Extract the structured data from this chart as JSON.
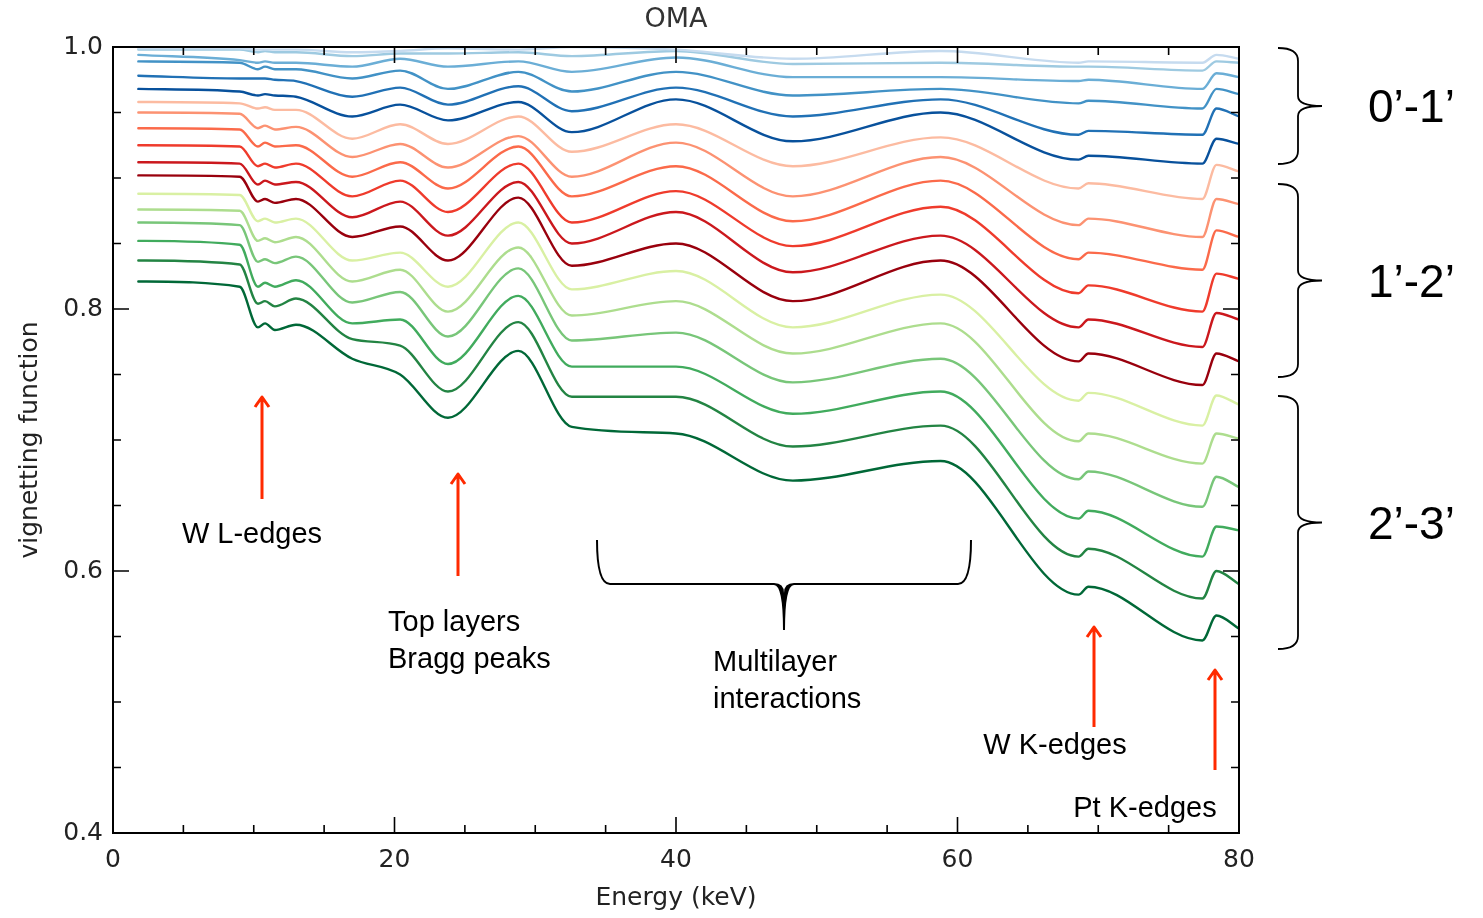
{
  "chart_data": {
    "type": "line",
    "title": "OMA",
    "xlabel": "Energy (keV)",
    "ylabel": "vignetting function",
    "x": [
      1.8,
      9.0,
      10.3,
      10.8,
      11.5,
      13,
      17,
      20.4,
      23.8,
      28.8,
      32.6,
      40,
      48.3,
      58.8,
      68.6,
      69.3,
      77.4,
      78.4,
      80
    ],
    "series": [
      {
        "color": "#c6dbef",
        "values": [
          0.999,
          0.999,
          0.998,
          0.998,
          0.998,
          0.998,
          0.996,
          0.997,
          0.999,
          0.998,
          1.0,
          0.998,
          0.991,
          0.997,
          0.988,
          0.989,
          0.988,
          0.994,
          0.991
        ]
      },
      {
        "color": "#9ecae1",
        "values": [
          0.998,
          0.998,
          0.996,
          0.997,
          0.996,
          0.996,
          0.993,
          0.995,
          0.995,
          0.996,
          0.993,
          0.997,
          0.987,
          0.988,
          0.985,
          0.985,
          0.982,
          0.989,
          0.988
        ]
      },
      {
        "color": "#6baed6",
        "values": [
          0.994,
          0.99,
          0.988,
          0.989,
          0.988,
          0.988,
          0.985,
          0.991,
          0.985,
          0.989,
          0.981,
          0.992,
          0.977,
          0.977,
          0.974,
          0.975,
          0.968,
          0.98,
          0.977
        ]
      },
      {
        "color": "#4292c6",
        "values": [
          0.989,
          0.988,
          0.983,
          0.985,
          0.983,
          0.983,
          0.976,
          0.982,
          0.968,
          0.981,
          0.966,
          0.981,
          0.963,
          0.968,
          0.957,
          0.959,
          0.953,
          0.968,
          0.964
        ]
      },
      {
        "color": "#2171b5",
        "values": [
          0.978,
          0.976,
          0.976,
          0.976,
          0.975,
          0.974,
          0.962,
          0.969,
          0.956,
          0.97,
          0.951,
          0.969,
          0.947,
          0.96,
          0.933,
          0.936,
          0.933,
          0.953,
          0.947
        ]
      },
      {
        "color": "#08519c",
        "values": [
          0.968,
          0.966,
          0.963,
          0.964,
          0.963,
          0.962,
          0.947,
          0.956,
          0.944,
          0.958,
          0.935,
          0.96,
          0.928,
          0.95,
          0.914,
          0.917,
          0.911,
          0.93,
          0.926
        ]
      },
      {
        "color": "#fcbba1",
        "values": [
          0.958,
          0.957,
          0.953,
          0.954,
          0.952,
          0.952,
          0.93,
          0.941,
          0.926,
          0.947,
          0.92,
          0.941,
          0.909,
          0.931,
          0.892,
          0.896,
          0.884,
          0.91,
          0.905
        ]
      },
      {
        "color": "#fc9272",
        "values": [
          0.95,
          0.949,
          0.938,
          0.94,
          0.937,
          0.939,
          0.916,
          0.926,
          0.908,
          0.932,
          0.901,
          0.927,
          0.886,
          0.916,
          0.864,
          0.869,
          0.855,
          0.884,
          0.88
        ]
      },
      {
        "color": "#fb6a4a",
        "values": [
          0.938,
          0.937,
          0.924,
          0.927,
          0.924,
          0.925,
          0.901,
          0.912,
          0.892,
          0.924,
          0.886,
          0.909,
          0.867,
          0.898,
          0.838,
          0.843,
          0.83,
          0.86,
          0.855
        ]
      },
      {
        "color": "#ef3b2c",
        "values": [
          0.925,
          0.924,
          0.909,
          0.911,
          0.908,
          0.911,
          0.886,
          0.898,
          0.874,
          0.911,
          0.866,
          0.89,
          0.848,
          0.878,
          0.812,
          0.818,
          0.798,
          0.827,
          0.823
        ]
      },
      {
        "color": "#cb181d",
        "values": [
          0.912,
          0.911,
          0.895,
          0.898,
          0.895,
          0.897,
          0.87,
          0.882,
          0.856,
          0.897,
          0.85,
          0.874,
          0.828,
          0.856,
          0.786,
          0.792,
          0.771,
          0.797,
          0.792
        ]
      },
      {
        "color": "#99000d",
        "values": [
          0.902,
          0.901,
          0.882,
          0.884,
          0.881,
          0.884,
          0.855,
          0.863,
          0.837,
          0.885,
          0.833,
          0.85,
          0.806,
          0.837,
          0.76,
          0.766,
          0.742,
          0.766,
          0.76
        ]
      },
      {
        "color": "#d9f0a3",
        "values": [
          0.888,
          0.887,
          0.867,
          0.869,
          0.866,
          0.869,
          0.837,
          0.843,
          0.817,
          0.866,
          0.815,
          0.829,
          0.786,
          0.811,
          0.73,
          0.736,
          0.711,
          0.734,
          0.727
        ]
      },
      {
        "color": "#addd8e",
        "values": [
          0.876,
          0.875,
          0.852,
          0.854,
          0.851,
          0.855,
          0.821,
          0.83,
          0.798,
          0.847,
          0.795,
          0.806,
          0.766,
          0.789,
          0.699,
          0.705,
          0.682,
          0.705,
          0.701
        ]
      },
      {
        "color": "#78c679",
        "values": [
          0.866,
          0.864,
          0.836,
          0.838,
          0.835,
          0.84,
          0.805,
          0.813,
          0.779,
          0.831,
          0.776,
          0.782,
          0.744,
          0.762,
          0.67,
          0.676,
          0.649,
          0.672,
          0.664
        ]
      },
      {
        "color": "#41ab5d",
        "values": [
          0.852,
          0.849,
          0.817,
          0.82,
          0.817,
          0.822,
          0.789,
          0.792,
          0.758,
          0.81,
          0.756,
          0.756,
          0.72,
          0.737,
          0.64,
          0.646,
          0.611,
          0.634,
          0.631
        ]
      },
      {
        "color": "#238443",
        "values": [
          0.837,
          0.834,
          0.804,
          0.806,
          0.802,
          0.808,
          0.777,
          0.772,
          0.737,
          0.79,
          0.733,
          0.733,
          0.695,
          0.711,
          0.611,
          0.617,
          0.579,
          0.6,
          0.59
        ]
      },
      {
        "color": "#006837",
        "values": [
          0.821,
          0.817,
          0.786,
          0.789,
          0.784,
          0.788,
          0.762,
          0.75,
          0.717,
          0.768,
          0.71,
          0.705,
          0.669,
          0.684,
          0.582,
          0.588,
          0.547,
          0.566,
          0.556
        ]
      }
    ],
    "xlim": [
      0,
      80
    ],
    "xticks": [
      0,
      {
        "value": 5,
        "label": null
      },
      {
        "value": 10,
        "label": null
      },
      {
        "value": 15,
        "label": null
      },
      20,
      {
        "value": 25,
        "label": null
      },
      {
        "value": 30,
        "label": null
      },
      {
        "value": 35,
        "label": null
      },
      40,
      {
        "value": 45,
        "label": null
      },
      {
        "value": 50,
        "label": null
      },
      {
        "value": 55,
        "label": null
      },
      60,
      {
        "value": 65,
        "label": null
      },
      {
        "value": 70,
        "label": null
      },
      {
        "value": 75,
        "label": null
      },
      80
    ],
    "ylim": [
      0.4,
      1.0
    ],
    "yticks": [
      0.4,
      {
        "value": 0.45,
        "label": null
      },
      {
        "value": 0.5,
        "label": null
      },
      {
        "value": 0.55,
        "label": null
      },
      0.6,
      {
        "value": 0.65,
        "label": null
      },
      {
        "value": 0.7,
        "label": null
      },
      {
        "value": 0.75,
        "label": null
      },
      0.8,
      {
        "value": 0.85,
        "label": null
      },
      {
        "value": 0.9,
        "label": null
      },
      {
        "value": 0.95,
        "label": null
      },
      {
        "value": 1.0,
        "label": "1.0"
      }
    ],
    "annotations": [
      "W L-edges",
      "Top layers\nBragg peaks",
      "Multilayer\ninteractions",
      "W K-edges",
      "Pt K-edges",
      "0’-1’",
      "1’-2’",
      "2’-3’"
    ]
  }
}
